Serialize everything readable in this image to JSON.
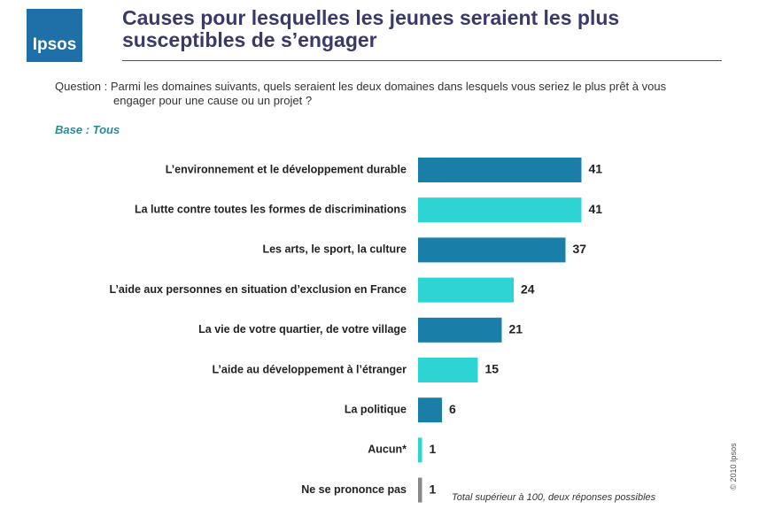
{
  "logo": "Ipsos",
  "question": "Question : Parmi les domaines suivants, quels seraient les deux domaines dans lesquels vous seriez le plus prêt à vous engager pour une cause ou un projet ?",
  "base": "Base : Tous",
  "note": "Total supérieur à 100, deux réponses possibles",
  "copyright": "© 2010 Ipsos",
  "chart_data": {
    "type": "bar",
    "orientation": "horizontal",
    "title": "Causes pour lesquelles les jeunes seraient les plus susceptibles de s’engager",
    "categories": [
      "L’environnement et le développement durable",
      "La lutte contre toutes les formes de discriminations",
      "Les arts, le sport, la culture",
      "L’aide aux personnes en situation d’exclusion en France",
      "La vie de votre quartier, de votre village",
      "L’aide au développement à l’étranger",
      "La politique",
      "Aucun*",
      "Ne se prononce pas"
    ],
    "values": [
      41,
      41,
      37,
      24,
      21,
      15,
      6,
      1,
      1
    ],
    "colors": [
      "#1a7fa8",
      "#2ed3d3",
      "#1a7fa8",
      "#2ed3d3",
      "#1a7fa8",
      "#2ed3d3",
      "#1a7fa8",
      "#2ed3d3",
      "#888888"
    ]
  }
}
